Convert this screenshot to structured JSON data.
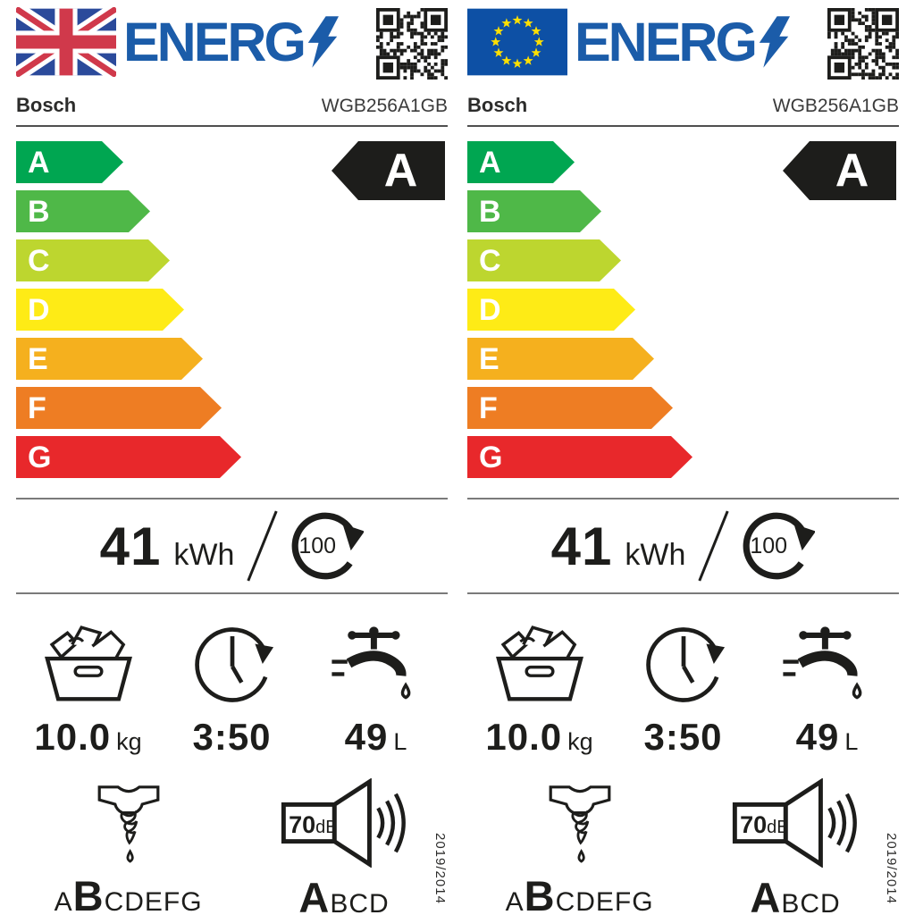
{
  "colors": {
    "logo_blue": "#1B5CA9",
    "rating_bg": "#1D1D1B",
    "divider_gray": "#7A7A7A",
    "text": "#1D1D1B"
  },
  "labels": [
    {
      "flag": "uk",
      "logo_text": "ENERG",
      "brand": "Bosch",
      "model": "WGB256A1GB",
      "rating": "A",
      "scale": [
        {
          "letter": "A",
          "color": "#00A651"
        },
        {
          "letter": "B",
          "color": "#4FB848"
        },
        {
          "letter": "C",
          "color": "#BDD62F"
        },
        {
          "letter": "D",
          "color": "#FEEB16"
        },
        {
          "letter": "E",
          "color": "#F5B01E"
        },
        {
          "letter": "F",
          "color": "#EE7D23"
        },
        {
          "letter": "G",
          "color": "#E8282B"
        }
      ],
      "energy": {
        "value": "41",
        "unit": "kWh",
        "per": "100"
      },
      "capacity": {
        "value": "10.0",
        "unit": "kg"
      },
      "duration": {
        "value": "3:50"
      },
      "water": {
        "value": "49",
        "unit": "L"
      },
      "spin": {
        "prefix": "A",
        "highlight": "B",
        "suffix": "CDEFG"
      },
      "noise": {
        "db": "70",
        "db_unit": "dB",
        "highlight": "A",
        "suffix": "BCD"
      },
      "regulation": "2019/2014"
    },
    {
      "flag": "eu",
      "logo_text": "ENERG",
      "brand": "Bosch",
      "model": "WGB256A1GB",
      "rating": "A",
      "scale": [
        {
          "letter": "A",
          "color": "#00A651"
        },
        {
          "letter": "B",
          "color": "#4FB848"
        },
        {
          "letter": "C",
          "color": "#BDD62F"
        },
        {
          "letter": "D",
          "color": "#FEEB16"
        },
        {
          "letter": "E",
          "color": "#F5B01E"
        },
        {
          "letter": "F",
          "color": "#EE7D23"
        },
        {
          "letter": "G",
          "color": "#E8282B"
        }
      ],
      "energy": {
        "value": "41",
        "unit": "kWh",
        "per": "100"
      },
      "capacity": {
        "value": "10.0",
        "unit": "kg"
      },
      "duration": {
        "value": "3:50"
      },
      "water": {
        "value": "49",
        "unit": "L"
      },
      "spin": {
        "prefix": "A",
        "highlight": "B",
        "suffix": "CDEFG"
      },
      "noise": {
        "db": "70",
        "db_unit": "dB",
        "highlight": "A",
        "suffix": "BCD"
      },
      "regulation": "2019/2014"
    }
  ]
}
